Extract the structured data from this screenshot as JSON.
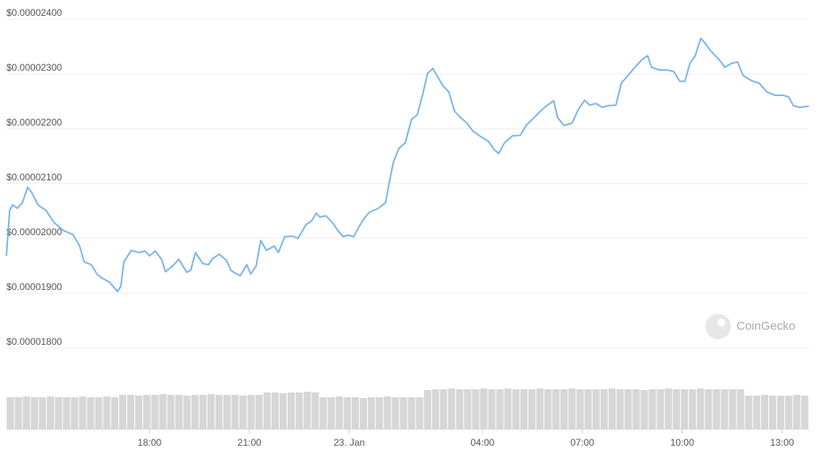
{
  "chart_data": {
    "type": "line",
    "x": [
      13.7,
      13.8,
      13.89,
      14.03,
      14.18,
      14.34,
      14.46,
      14.65,
      14.89,
      15.13,
      15.42,
      15.7,
      15.9,
      16.04,
      16.25,
      16.42,
      16.56,
      16.8,
      17.04,
      17.14,
      17.23,
      17.45,
      17.69,
      17.86,
      18.0,
      18.17,
      18.36,
      18.48,
      18.72,
      18.88,
      19.12,
      19.24,
      19.38,
      19.6,
      19.77,
      19.91,
      20.1,
      20.32,
      20.44,
      20.61,
      20.73,
      20.92,
      21.04,
      21.2,
      21.34,
      21.51,
      21.75,
      21.87,
      22.06,
      22.3,
      22.46,
      22.7,
      22.87,
      23.01,
      23.11,
      23.3,
      23.49,
      23.66,
      23.82,
      23.97,
      24.13,
      24.3,
      24.44,
      24.61,
      24.85,
      25.09,
      25.2,
      25.32,
      25.49,
      25.68,
      25.87,
      26.04,
      26.2,
      26.35,
      26.51,
      26.63,
      26.82,
      26.99,
      27.16,
      27.35,
      27.54,
      27.71,
      27.94,
      28.18,
      28.35,
      28.49,
      28.66,
      28.9,
      29.14,
      29.31,
      29.55,
      29.74,
      29.93,
      30.14,
      30.26,
      30.45,
      30.69,
      30.88,
      31.07,
      31.22,
      31.41,
      31.6,
      31.77,
      32.01,
      32.17,
      32.37,
      32.55,
      32.79,
      32.96,
      33.08,
      33.32,
      33.56,
      33.75,
      33.92,
      34.08,
      34.23,
      34.39,
      34.56,
      34.7,
      34.87,
      35.11,
      35.28,
      35.47,
      35.66,
      35.83,
      36.07,
      36.31,
      36.55,
      36.79,
      37.03,
      37.2,
      37.34,
      37.51,
      37.8
    ],
    "values": [
      1.968e-05,
      2.051e-05,
      2.061e-05,
      2.055e-05,
      2.065e-05,
      2.093e-05,
      2.084e-05,
      2.061e-05,
      2.051e-05,
      2.029e-05,
      2.014e-05,
      2.007e-05,
      1.986e-05,
      1.957e-05,
      1.952e-05,
      1.935e-05,
      1.928e-05,
      1.92e-05,
      1.903e-05,
      1.913e-05,
      1.957e-05,
      1.978e-05,
      1.974e-05,
      1.977e-05,
      1.968e-05,
      1.977e-05,
      1.962e-05,
      1.939e-05,
      1.951e-05,
      1.962e-05,
      1.938e-05,
      1.942e-05,
      1.974e-05,
      1.954e-05,
      1.952e-05,
      1.964e-05,
      1.971e-05,
      1.959e-05,
      1.942e-05,
      1.935e-05,
      1.932e-05,
      1.952e-05,
      1.935e-05,
      1.949e-05,
      1.996e-05,
      1.978e-05,
      1.986e-05,
      1.974e-05,
      2.003e-05,
      2.004e-05,
      2e-05,
      2.025e-05,
      2.032e-05,
      2.046e-05,
      2.039e-05,
      2.041e-05,
      2.029e-05,
      2.014e-05,
      2.003e-05,
      2.006e-05,
      2.003e-05,
      2.022e-05,
      2.036e-05,
      2.048e-05,
      2.054e-05,
      2.065e-05,
      2.101e-05,
      2.138e-05,
      2.164e-05,
      2.174e-05,
      2.217e-05,
      2.225e-05,
      2.261e-05,
      2.301e-05,
      2.31e-05,
      2.297e-05,
      2.278e-05,
      2.267e-05,
      2.232e-05,
      2.22e-05,
      2.21e-05,
      2.196e-05,
      2.186e-05,
      2.177e-05,
      2.162e-05,
      2.155e-05,
      2.174e-05,
      2.187e-05,
      2.188e-05,
      2.206e-05,
      2.22e-05,
      2.232e-05,
      2.242e-05,
      2.251e-05,
      2.22e-05,
      2.206e-05,
      2.21e-05,
      2.235e-05,
      2.252e-05,
      2.243e-05,
      2.246e-05,
      2.239e-05,
      2.242e-05,
      2.243e-05,
      2.283e-05,
      2.297e-05,
      2.31e-05,
      2.326e-05,
      2.333e-05,
      2.312e-05,
      2.307e-05,
      2.307e-05,
      2.304e-05,
      2.287e-05,
      2.286e-05,
      2.319e-05,
      2.333e-05,
      2.365e-05,
      2.355e-05,
      2.341e-05,
      2.326e-05,
      2.312e-05,
      2.319e-05,
      2.322e-05,
      2.297e-05,
      2.288e-05,
      2.283e-05,
      2.267e-05,
      2.261e-05,
      2.261e-05,
      2.258e-05,
      2.242e-05,
      2.239e-05,
      2.241e-05
    ],
    "color": "#7cb5ec",
    "xlim": [
      13.7,
      37.8
    ],
    "xticks": [
      {
        "value": 18,
        "label": "18:00"
      },
      {
        "value": 21,
        "label": "21:00"
      },
      {
        "value": 24,
        "label": "23. Jan"
      },
      {
        "value": 28,
        "label": "04:00"
      },
      {
        "value": 31,
        "label": "07:00"
      },
      {
        "value": 34,
        "label": "10:00"
      },
      {
        "value": 37,
        "label": "13:00"
      }
    ],
    "ylim": [
      1.8e-05,
      2.4e-05
    ],
    "yticks": [
      {
        "value": 1.8e-05,
        "label": "$0.00001800"
      },
      {
        "value": 1.9e-05,
        "label": "$0.00001900"
      },
      {
        "value": 2e-05,
        "label": "$0.00002000"
      },
      {
        "value": 2.1e-05,
        "label": "$0.00002100"
      },
      {
        "value": 2.2e-05,
        "label": "$0.00002200"
      },
      {
        "value": 2.3e-05,
        "label": "$0.00002300"
      },
      {
        "value": 2.4e-05,
        "label": "$0.00002400"
      }
    ],
    "grid": true,
    "watermark": "CoinGecko",
    "volume": {
      "color": "#d6d6d6",
      "ylim": [
        0,
        100
      ],
      "values": [
        40,
        40,
        41,
        40,
        40,
        41,
        40,
        40,
        40,
        41,
        40,
        40,
        41,
        40,
        43,
        43,
        42,
        43,
        43,
        44,
        43,
        43,
        42,
        43,
        43,
        44,
        43,
        43,
        43,
        42,
        43,
        43,
        46,
        46,
        45,
        46,
        46,
        47,
        46,
        40,
        40,
        41,
        40,
        40,
        39,
        40,
        40,
        41,
        40,
        40,
        40,
        40,
        49,
        50,
        50,
        51,
        50,
        50,
        50,
        51,
        50,
        50,
        51,
        50,
        50,
        50,
        51,
        50,
        50,
        50,
        51,
        50,
        50,
        50,
        50,
        51,
        50,
        50,
        50,
        49,
        50,
        50,
        51,
        50,
        50,
        50,
        51,
        50,
        50,
        50,
        50,
        50,
        42,
        42,
        43,
        42,
        42,
        42,
        43,
        42
      ]
    }
  }
}
